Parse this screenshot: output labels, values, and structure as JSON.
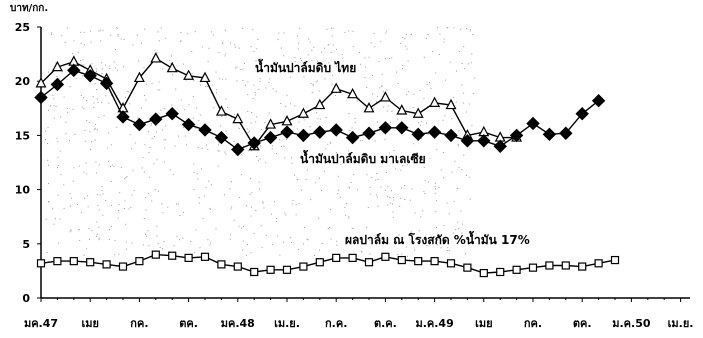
{
  "chart_data": {
    "type": "line",
    "ylabel": "",
    "ylim": [
      0,
      25
    ],
    "y_ticks": [
      0,
      5,
      10,
      15,
      20,
      25
    ],
    "x_tick_labels": [
      "มค.47",
      "เมย",
      "กค.",
      "ตค.",
      "มค.48",
      "เม.ย.",
      "ก.ค.",
      "ต.ค.",
      "ม.ค.49",
      "เมย",
      "กค.",
      "ตค.",
      "ม.ค.50",
      "เม.ย."
    ],
    "grid": false,
    "legend": "inline",
    "series": [
      {
        "name": "น้ำมันปาล์มดิบ ไทย",
        "marker": "triangle",
        "values": [
          19.8,
          21.3,
          21.8,
          21.0,
          20.2,
          17.5,
          20.3,
          22.1,
          21.2,
          20.5,
          20.3,
          17.2,
          16.5,
          14.0,
          16.0,
          16.3,
          17.0,
          17.8,
          19.3,
          18.8,
          17.5,
          18.5,
          17.3,
          17.0,
          18.0,
          17.8,
          15.0,
          15.3,
          14.8,
          14.8
        ]
      },
      {
        "name": "น้ำมันปาล์มดิบ มาเลเซีย",
        "marker": "diamond",
        "values": [
          18.5,
          19.7,
          21.0,
          20.5,
          19.8,
          16.7,
          16.0,
          16.5,
          17.0,
          16.0,
          15.5,
          14.8,
          13.7,
          14.3,
          14.8,
          15.3,
          15.0,
          15.3,
          15.5,
          14.8,
          15.2,
          15.7,
          15.7,
          15.1,
          15.3,
          15.0,
          14.5,
          14.5,
          14.0,
          15.0,
          16.1,
          15.1,
          15.2,
          17.0,
          18.2
        ]
      },
      {
        "name": "ผลปาล์ม ณ โรงสกัด %น้ำมัน 17%",
        "marker": "square",
        "values": [
          3.2,
          3.4,
          3.4,
          3.3,
          3.1,
          2.9,
          3.4,
          4.0,
          3.9,
          3.7,
          3.8,
          3.1,
          2.9,
          2.4,
          2.6,
          2.6,
          2.9,
          3.3,
          3.7,
          3.7,
          3.3,
          3.8,
          3.5,
          3.4,
          3.4,
          3.2,
          2.8,
          2.3,
          2.4,
          2.6,
          2.8,
          3.0,
          3.0,
          2.9,
          3.2,
          3.5
        ]
      }
    ],
    "series_colors": [
      "#000000",
      "#000000",
      "#000000"
    ]
  }
}
